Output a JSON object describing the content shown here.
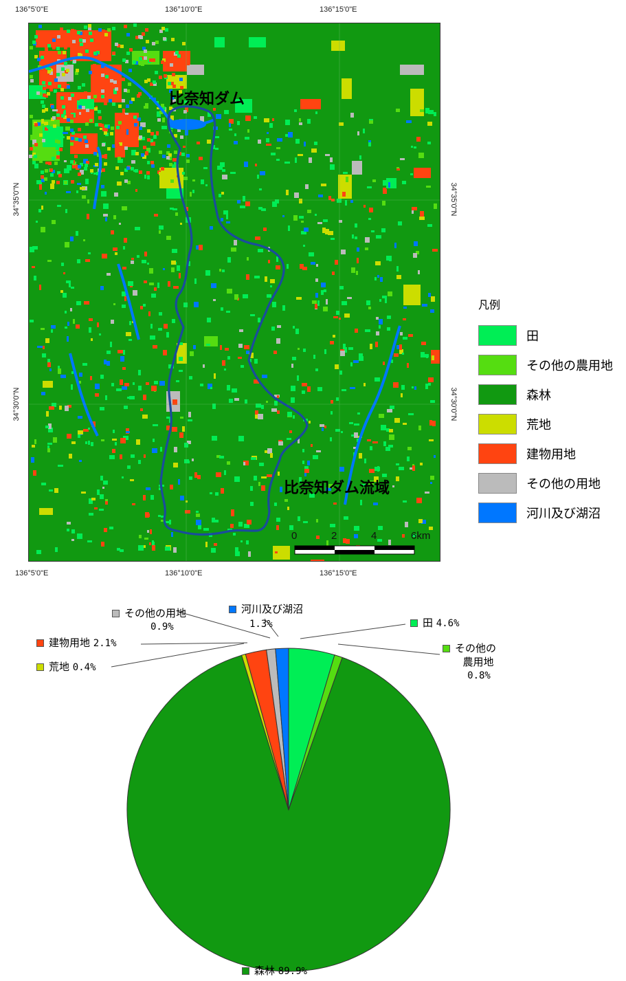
{
  "coords": {
    "top_lon": [
      "136°5'0\"E",
      "136°10'0\"E",
      "136°15'0\"E"
    ],
    "bottom_lon": [
      "136°5'0\"E",
      "136°10'0\"E",
      "136°15'0\"E"
    ],
    "left_lat": [
      "34°35'0\"N",
      "34°30'0\"N"
    ],
    "right_lat": [
      "34°35'0\"N",
      "34°30'0\"N"
    ]
  },
  "map": {
    "dam_label": "比奈知ダム",
    "basin_label": "比奈知ダム流域",
    "scale_ticks": [
      "0",
      "2",
      "4",
      "6km"
    ]
  },
  "legend": {
    "title": "凡例",
    "items": [
      {
        "label": "田",
        "color": "#00ee55"
      },
      {
        "label": "その他の農用地",
        "color": "#55dd11"
      },
      {
        "label": "森林",
        "color": "#119911"
      },
      {
        "label": "荒地",
        "color": "#ccdd00"
      },
      {
        "label": "建物用地",
        "color": "#ff4411"
      },
      {
        "label": "その他の用地",
        "color": "#bbbbbb"
      },
      {
        "label": "河川及び湖沼",
        "color": "#0077ff"
      }
    ]
  },
  "chart_data": {
    "type": "pie",
    "slices": [
      {
        "name": "田",
        "value": 4.6,
        "label": "4.6%",
        "color": "#00ee55"
      },
      {
        "name": "その他の農用地",
        "value": 0.8,
        "label": "0.8%",
        "color": "#55dd11"
      },
      {
        "name": "森林",
        "value": 89.9,
        "label": "89.9%",
        "color": "#119911"
      },
      {
        "name": "荒地",
        "value": 0.4,
        "label": "0.4%",
        "color": "#ccdd00"
      },
      {
        "name": "建物用地",
        "value": 2.1,
        "label": "2.1%",
        "color": "#ff4411"
      },
      {
        "name": "その他の用地",
        "value": 0.9,
        "label": "0.9%",
        "color": "#bbbbbb"
      },
      {
        "name": "河川及び湖沼",
        "value": 1.3,
        "label": "1.3%",
        "color": "#0077ff"
      }
    ],
    "pie_labels": {
      "ta": "田",
      "ta_pct": "4.6%",
      "other_agri_1": "その他の",
      "other_agri_2": "農用地",
      "other_agri_pct": "0.8%",
      "forest": "森林",
      "forest_pct": "89.9%",
      "wasteland": "荒地",
      "wasteland_pct": "0.4%",
      "building": "建物用地",
      "building_pct": "2.1%",
      "other_use": "その他の用地",
      "other_use_pct": "0.9%",
      "river": "河川及び湖沼",
      "river_pct": "1.3%"
    }
  }
}
